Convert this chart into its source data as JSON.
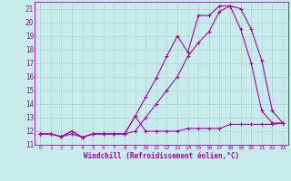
{
  "xlabel": "Windchill (Refroidissement éolien,°C)",
  "background_color": "#c8ecec",
  "grid_color": "#aad4d4",
  "line_color": "#aa00aa",
  "xlim": [
    -0.5,
    23.5
  ],
  "ylim": [
    11,
    21.5
  ],
  "xticks": [
    0,
    1,
    2,
    3,
    4,
    5,
    6,
    7,
    8,
    9,
    10,
    11,
    12,
    13,
    14,
    15,
    16,
    17,
    18,
    19,
    20,
    21,
    22,
    23
  ],
  "yticks": [
    11,
    12,
    13,
    14,
    15,
    16,
    17,
    18,
    19,
    20,
    21
  ],
  "series1_x": [
    0,
    1,
    2,
    3,
    4,
    5,
    6,
    7,
    8,
    9,
    10,
    11,
    12,
    13,
    14,
    15,
    16,
    17,
    18,
    19,
    20,
    21,
    22,
    23
  ],
  "series1_y": [
    11.8,
    11.8,
    11.6,
    12.0,
    11.55,
    11.8,
    11.8,
    11.8,
    11.8,
    13.1,
    12.0,
    12.0,
    12.0,
    12.0,
    12.2,
    12.2,
    12.2,
    12.2,
    12.5,
    12.5,
    12.5,
    12.5,
    12.5,
    12.6
  ],
  "series2_x": [
    0,
    1,
    2,
    3,
    4,
    5,
    6,
    7,
    8,
    9,
    10,
    11,
    12,
    13,
    14,
    15,
    16,
    17,
    18,
    19,
    20,
    21,
    22,
    23
  ],
  "series2_y": [
    11.8,
    11.8,
    11.6,
    12.0,
    11.55,
    11.8,
    11.8,
    11.8,
    11.8,
    13.1,
    14.5,
    15.9,
    17.5,
    19.0,
    17.8,
    20.5,
    20.5,
    21.2,
    21.2,
    19.5,
    17.0,
    13.5,
    12.6,
    12.6
  ],
  "series3_x": [
    0,
    1,
    2,
    3,
    4,
    5,
    6,
    7,
    8,
    9,
    10,
    11,
    12,
    13,
    14,
    15,
    16,
    17,
    18,
    19,
    20,
    21,
    22,
    23
  ],
  "series3_y": [
    11.8,
    11.8,
    11.6,
    11.8,
    11.55,
    11.8,
    11.8,
    11.8,
    11.8,
    12.0,
    13.0,
    14.0,
    15.0,
    16.0,
    17.5,
    18.5,
    19.3,
    20.8,
    21.2,
    21.0,
    19.5,
    17.2,
    13.5,
    12.6
  ]
}
